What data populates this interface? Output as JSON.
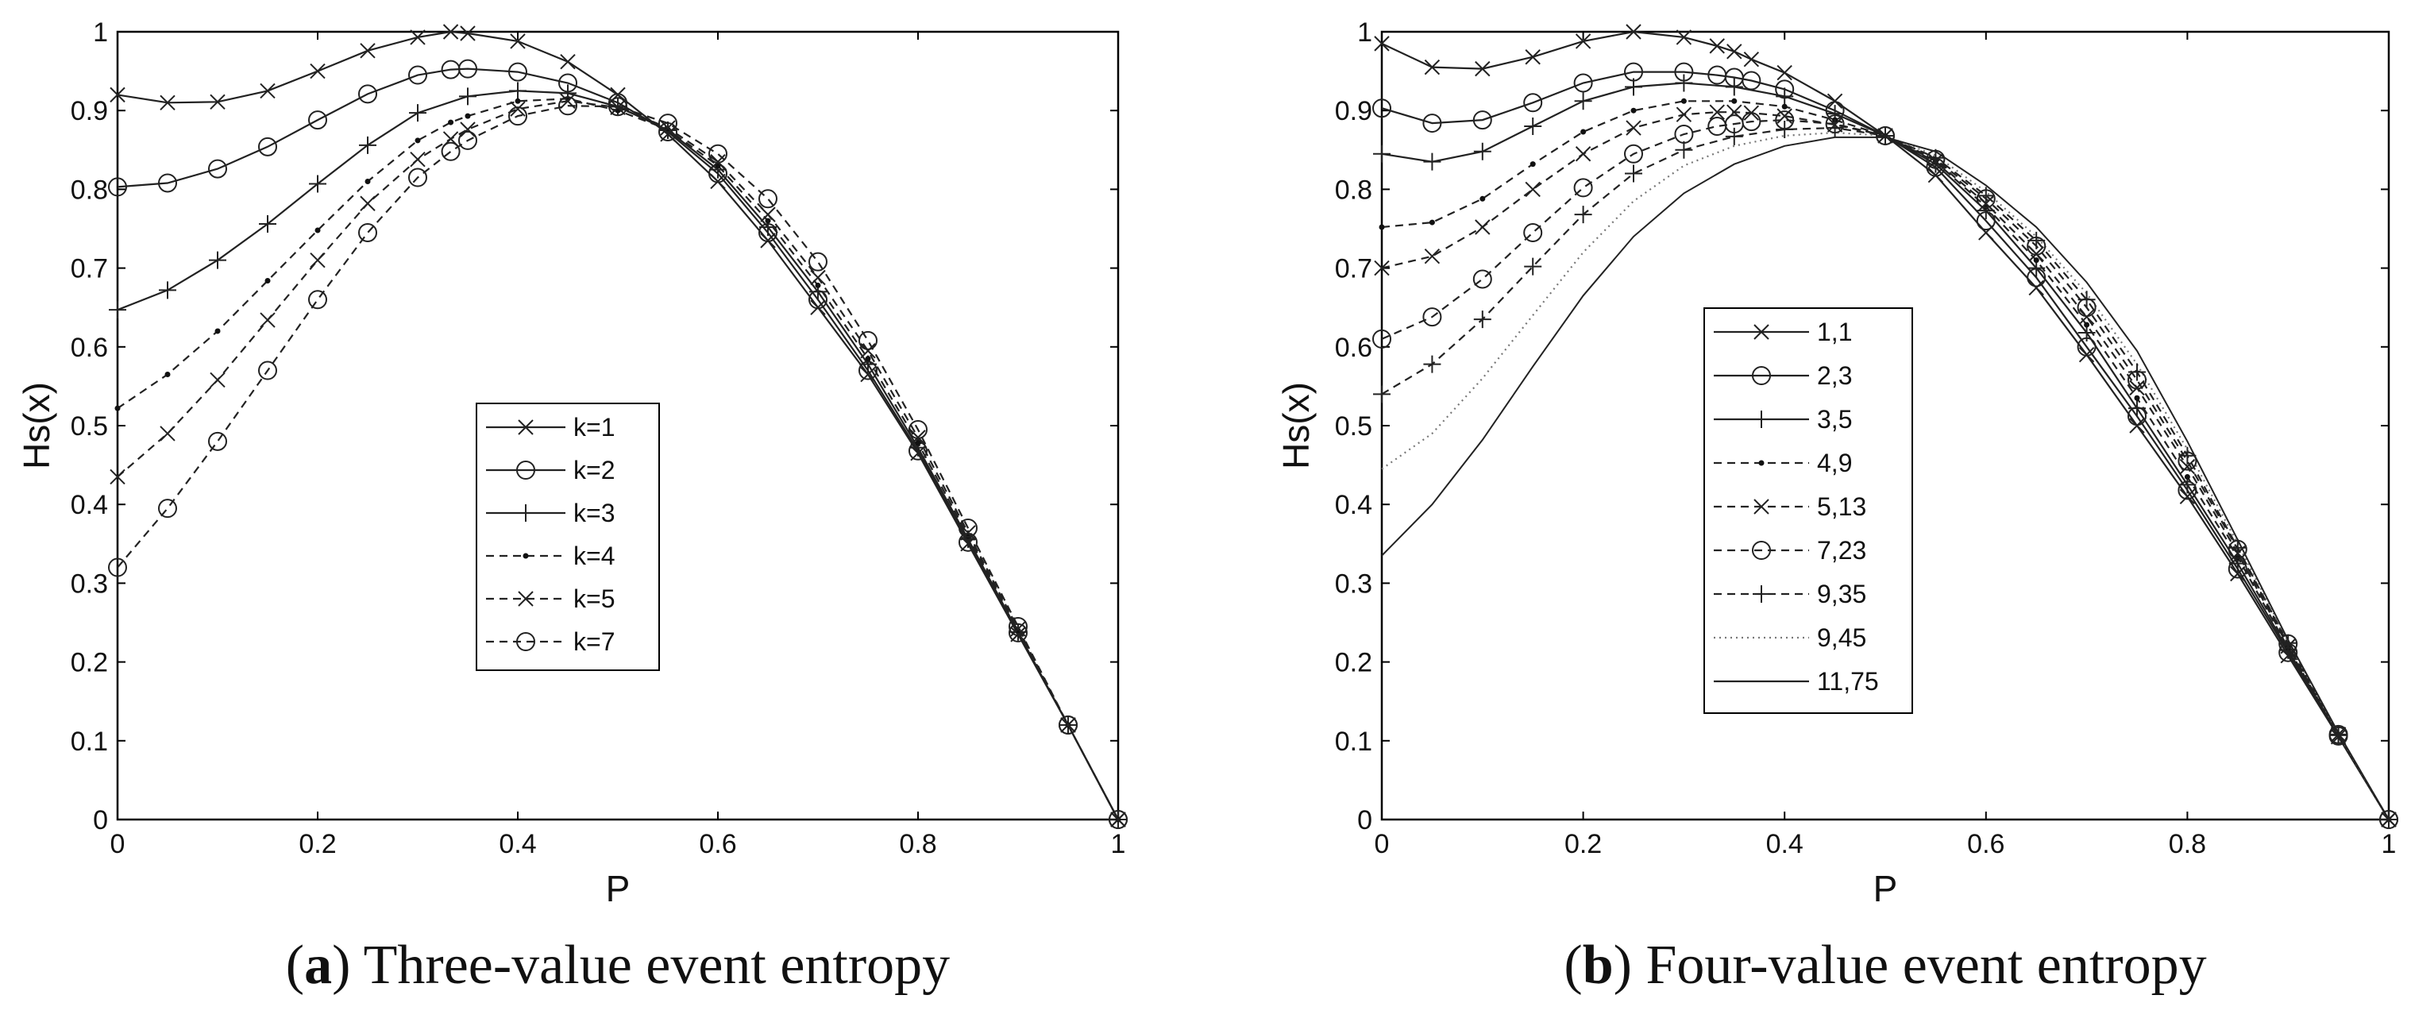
{
  "chart_data": [
    {
      "type": "line",
      "caption_letter": "a",
      "caption_text": "Three-value event entropy",
      "xlabel": "P",
      "ylabel": "Hs(x)",
      "xlim": [
        0,
        1
      ],
      "ylim": [
        0,
        1
      ],
      "x_ticks": [
        "0",
        "0.2",
        "0.4",
        "0.6",
        "0.8",
        "1"
      ],
      "y_ticks": [
        "0",
        "0.1",
        "0.2",
        "0.3",
        "0.4",
        "0.5",
        "0.6",
        "0.7",
        "0.8",
        "0.9",
        "1"
      ],
      "grid": false,
      "legend_position": "center-right",
      "series": [
        {
          "name": "k=1",
          "style": "solid",
          "marker": "x",
          "x": [
            0,
            0.05,
            0.1,
            0.15,
            0.2,
            0.25,
            0.3,
            0.333,
            0.35,
            0.4,
            0.45,
            0.5,
            0.55,
            0.6,
            0.65,
            0.7,
            0.75,
            0.8,
            0.85,
            0.9,
            0.95,
            1
          ],
          "y": [
            0.92,
            0.91,
            0.911,
            0.925,
            0.95,
            0.976,
            0.993,
            1.0,
            0.998,
            0.988,
            0.962,
            0.92,
            0.87,
            0.81,
            0.735,
            0.65,
            0.565,
            0.465,
            0.35,
            0.235,
            0.12,
            0
          ]
        },
        {
          "name": "k=2",
          "style": "solid",
          "marker": "o",
          "x": [
            0,
            0.05,
            0.1,
            0.15,
            0.2,
            0.25,
            0.3,
            0.333,
            0.35,
            0.4,
            0.45,
            0.5,
            0.55,
            0.6,
            0.65,
            0.7,
            0.75,
            0.8,
            0.85,
            0.9,
            0.95,
            1
          ],
          "y": [
            0.803,
            0.808,
            0.826,
            0.854,
            0.888,
            0.921,
            0.945,
            0.952,
            0.953,
            0.949,
            0.935,
            0.91,
            0.873,
            0.82,
            0.745,
            0.66,
            0.57,
            0.468,
            0.352,
            0.237,
            0.12,
            0
          ]
        },
        {
          "name": "k=3",
          "style": "solid",
          "marker": "+",
          "x": [
            0,
            0.05,
            0.1,
            0.15,
            0.2,
            0.25,
            0.3,
            0.35,
            0.4,
            0.45,
            0.5,
            0.55,
            0.6,
            0.65,
            0.7,
            0.75,
            0.8,
            0.85,
            0.9,
            0.95,
            1
          ],
          "y": [
            0.647,
            0.672,
            0.71,
            0.756,
            0.807,
            0.856,
            0.897,
            0.918,
            0.925,
            0.922,
            0.905,
            0.875,
            0.825,
            0.752,
            0.67,
            0.578,
            0.472,
            0.356,
            0.238,
            0.12,
            0
          ]
        },
        {
          "name": "k=4",
          "style": "dashed",
          "marker": "dot",
          "x": [
            0,
            0.05,
            0.1,
            0.15,
            0.2,
            0.25,
            0.3,
            0.333,
            0.35,
            0.4,
            0.45,
            0.5,
            0.55,
            0.6,
            0.65,
            0.7,
            0.75,
            0.8,
            0.85,
            0.9,
            0.95,
            1
          ],
          "y": [
            0.522,
            0.565,
            0.62,
            0.684,
            0.748,
            0.81,
            0.862,
            0.885,
            0.893,
            0.912,
            0.915,
            0.9,
            0.876,
            0.83,
            0.76,
            0.678,
            0.585,
            0.478,
            0.36,
            0.24,
            0.12,
            0
          ]
        },
        {
          "name": "k=5",
          "style": "dashed",
          "marker": "x",
          "x": [
            0,
            0.05,
            0.1,
            0.15,
            0.2,
            0.25,
            0.3,
            0.333,
            0.35,
            0.4,
            0.45,
            0.5,
            0.55,
            0.6,
            0.65,
            0.7,
            0.75,
            0.8,
            0.85,
            0.9,
            0.95,
            1
          ],
          "y": [
            0.435,
            0.49,
            0.558,
            0.634,
            0.71,
            0.782,
            0.838,
            0.864,
            0.876,
            0.902,
            0.912,
            0.904,
            0.878,
            0.835,
            0.768,
            0.688,
            0.595,
            0.485,
            0.364,
            0.242,
            0.12,
            0
          ]
        },
        {
          "name": "k=7",
          "style": "dashed",
          "marker": "o",
          "x": [
            0,
            0.05,
            0.1,
            0.15,
            0.2,
            0.25,
            0.3,
            0.333,
            0.35,
            0.4,
            0.45,
            0.5,
            0.55,
            0.6,
            0.65,
            0.7,
            0.75,
            0.8,
            0.85,
            0.9,
            0.95,
            1
          ],
          "y": [
            0.32,
            0.395,
            0.48,
            0.57,
            0.66,
            0.745,
            0.815,
            0.848,
            0.862,
            0.893,
            0.906,
            0.905,
            0.884,
            0.845,
            0.788,
            0.708,
            0.608,
            0.495,
            0.37,
            0.245,
            0.12,
            0
          ]
        }
      ]
    },
    {
      "type": "line",
      "caption_letter": "b",
      "caption_text": "Four-value event entropy",
      "xlabel": "P",
      "ylabel": "Hs(x)",
      "xlim": [
        0,
        1
      ],
      "ylim": [
        0,
        1
      ],
      "x_ticks": [
        "0",
        "0.2",
        "0.4",
        "0.6",
        "0.8",
        "1"
      ],
      "y_ticks": [
        "0",
        "0.1",
        "0.2",
        "0.3",
        "0.4",
        "0.5",
        "0.6",
        "0.7",
        "0.8",
        "0.9",
        "1"
      ],
      "grid": false,
      "legend_position": "center",
      "series": [
        {
          "name": "1,1",
          "style": "solid",
          "marker": "x",
          "x": [
            0,
            0.05,
            0.1,
            0.15,
            0.2,
            0.25,
            0.3,
            0.333,
            0.35,
            0.367,
            0.4,
            0.45,
            0.5,
            0.55,
            0.6,
            0.65,
            0.7,
            0.75,
            0.8,
            0.85,
            0.9,
            0.95,
            1
          ],
          "y": [
            0.985,
            0.955,
            0.953,
            0.968,
            0.988,
            1.0,
            0.993,
            0.982,
            0.975,
            0.965,
            0.948,
            0.912,
            0.868,
            0.818,
            0.745,
            0.675,
            0.59,
            0.5,
            0.41,
            0.312,
            0.208,
            0.105,
            0
          ]
        },
        {
          "name": "2,3",
          "style": "solid",
          "marker": "o",
          "x": [
            0,
            0.05,
            0.1,
            0.15,
            0.2,
            0.25,
            0.3,
            0.333,
            0.35,
            0.367,
            0.4,
            0.45,
            0.5,
            0.55,
            0.6,
            0.65,
            0.7,
            0.75,
            0.8,
            0.85,
            0.9,
            0.95,
            1
          ],
          "y": [
            0.903,
            0.884,
            0.888,
            0.91,
            0.935,
            0.949,
            0.949,
            0.945,
            0.942,
            0.938,
            0.927,
            0.9,
            0.868,
            0.828,
            0.76,
            0.688,
            0.6,
            0.512,
            0.418,
            0.318,
            0.212,
            0.106,
            0
          ]
        },
        {
          "name": "3,5",
          "style": "solid",
          "marker": "+",
          "x": [
            0,
            0.05,
            0.1,
            0.15,
            0.2,
            0.25,
            0.3,
            0.35,
            0.4,
            0.45,
            0.5,
            0.55,
            0.6,
            0.65,
            0.7,
            0.75,
            0.8,
            0.85,
            0.9,
            0.95,
            1
          ],
          "y": [
            0.845,
            0.835,
            0.848,
            0.88,
            0.912,
            0.93,
            0.935,
            0.93,
            0.918,
            0.896,
            0.868,
            0.832,
            0.773,
            0.7,
            0.618,
            0.522,
            0.425,
            0.325,
            0.215,
            0.107,
            0
          ]
        },
        {
          "name": "4,9",
          "style": "dashed",
          "marker": "dot",
          "x": [
            0,
            0.05,
            0.1,
            0.15,
            0.2,
            0.25,
            0.3,
            0.35,
            0.4,
            0.45,
            0.5,
            0.55,
            0.6,
            0.65,
            0.7,
            0.75,
            0.8,
            0.85,
            0.9,
            0.95,
            1
          ],
          "y": [
            0.752,
            0.758,
            0.788,
            0.832,
            0.873,
            0.9,
            0.912,
            0.912,
            0.905,
            0.888,
            0.868,
            0.835,
            0.778,
            0.71,
            0.628,
            0.535,
            0.435,
            0.333,
            0.218,
            0.108,
            0
          ]
        },
        {
          "name": "5,13",
          "style": "dashed",
          "marker": "x",
          "x": [
            0,
            0.05,
            0.1,
            0.15,
            0.2,
            0.25,
            0.3,
            0.333,
            0.35,
            0.367,
            0.4,
            0.45,
            0.5,
            0.55,
            0.6,
            0.65,
            0.7,
            0.75,
            0.8,
            0.85,
            0.9,
            0.95,
            1
          ],
          "y": [
            0.7,
            0.715,
            0.752,
            0.8,
            0.845,
            0.878,
            0.895,
            0.898,
            0.898,
            0.897,
            0.893,
            0.882,
            0.868,
            0.836,
            0.782,
            0.718,
            0.638,
            0.548,
            0.448,
            0.338,
            0.22,
            0.108,
            0
          ]
        },
        {
          "name": "7,23",
          "style": "dashed",
          "marker": "o",
          "x": [
            0,
            0.05,
            0.1,
            0.15,
            0.2,
            0.25,
            0.3,
            0.333,
            0.35,
            0.367,
            0.4,
            0.45,
            0.5,
            0.55,
            0.6,
            0.65,
            0.7,
            0.75,
            0.8,
            0.85,
            0.9,
            0.95,
            1
          ],
          "y": [
            0.61,
            0.638,
            0.686,
            0.745,
            0.802,
            0.845,
            0.87,
            0.88,
            0.883,
            0.886,
            0.888,
            0.883,
            0.868,
            0.838,
            0.788,
            0.728,
            0.65,
            0.558,
            0.455,
            0.343,
            0.223,
            0.108,
            0
          ]
        },
        {
          "name": "9,35",
          "style": "dashed",
          "marker": "+",
          "x": [
            0,
            0.05,
            0.1,
            0.15,
            0.2,
            0.25,
            0.3,
            0.35,
            0.4,
            0.45,
            0.5,
            0.55,
            0.6,
            0.65,
            0.7,
            0.75,
            0.8,
            0.85,
            0.9,
            0.95,
            1
          ],
          "y": [
            0.54,
            0.578,
            0.635,
            0.702,
            0.768,
            0.82,
            0.85,
            0.867,
            0.876,
            0.878,
            0.868,
            0.84,
            0.792,
            0.735,
            0.66,
            0.568,
            0.462,
            0.345,
            0.224,
            0.108,
            0
          ]
        },
        {
          "name": "9,45",
          "style": "dotted",
          "marker": "none",
          "x": [
            0,
            0.05,
            0.1,
            0.15,
            0.2,
            0.25,
            0.3,
            0.35,
            0.4,
            0.45,
            0.5,
            0.55,
            0.6,
            0.65,
            0.7,
            0.75,
            0.8,
            0.85,
            0.9,
            0.95,
            1
          ],
          "y": [
            0.445,
            0.49,
            0.56,
            0.64,
            0.72,
            0.785,
            0.83,
            0.855,
            0.868,
            0.872,
            0.868,
            0.843,
            0.797,
            0.74,
            0.668,
            0.578,
            0.47,
            0.35,
            0.226,
            0.109,
            0
          ]
        },
        {
          "name": "11,75",
          "style": "solid-thin",
          "marker": "none",
          "x": [
            0,
            0.05,
            0.1,
            0.15,
            0.2,
            0.25,
            0.3,
            0.35,
            0.4,
            0.45,
            0.5,
            0.55,
            0.6,
            0.65,
            0.7,
            0.75,
            0.8,
            0.85,
            0.9,
            0.95,
            1
          ],
          "y": [
            0.335,
            0.4,
            0.482,
            0.575,
            0.665,
            0.74,
            0.795,
            0.832,
            0.855,
            0.866,
            0.866,
            0.848,
            0.805,
            0.752,
            0.682,
            0.595,
            0.48,
            0.355,
            0.228,
            0.11,
            0
          ]
        }
      ]
    }
  ]
}
